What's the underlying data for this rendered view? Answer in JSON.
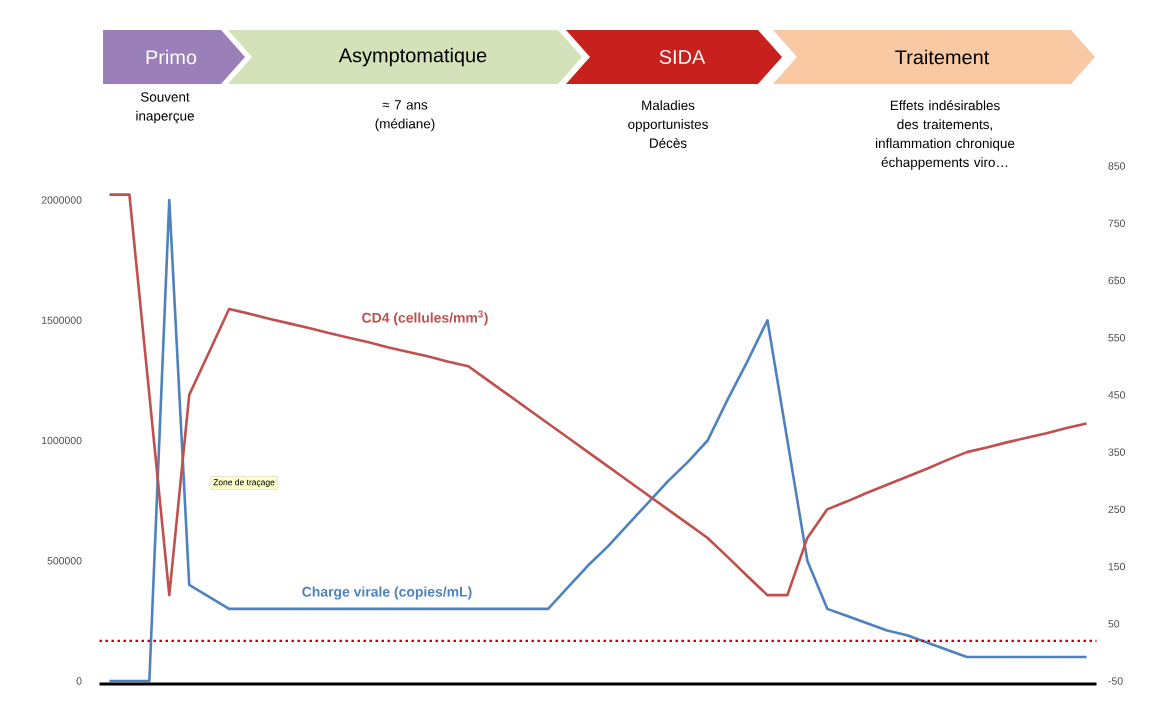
{
  "chart_data": {
    "type": "line",
    "annotations": [
      "Primo",
      "Souvent inaperçue",
      "Asymptomatique",
      "≈ 7 ans (médiane)",
      "SIDA",
      "Maladies opportunistes Décès",
      "Traitement",
      "Effets indésirables des traitements, inflammation chronique échappements viro…",
      "Zone de traçage"
    ],
    "categories": [
      null,
      null,
      null,
      null,
      null,
      null,
      null,
      null,
      null,
      null,
      null,
      null,
      null,
      null,
      null,
      null,
      null,
      null,
      null,
      null,
      null,
      null,
      null,
      null,
      null,
      null,
      null,
      null,
      null,
      null,
      null,
      null,
      null,
      null,
      null,
      null,
      null,
      null,
      null,
      null,
      null,
      null,
      null,
      null,
      null,
      null,
      null,
      null,
      null,
      null
    ],
    "ylim": [
      0,
      2000000
    ],
    "yticks": [
      0,
      500000,
      1000000,
      1500000,
      2000000
    ],
    "y2lim": [
      -50,
      850
    ],
    "y2ticks": [
      -50,
      50,
      150,
      250,
      350,
      450,
      550,
      650,
      750,
      850
    ],
    "tick_labels": "y",
    "series": [
      {
        "name": "CD4 (cellules/mm$^{3}$)",
        "color": "#c0504d",
        "axis": "y2",
        "values": [
          800,
          800,
          450,
          100,
          450,
          525,
          600,
          592,
          583,
          575,
          567,
          558,
          550,
          542,
          533,
          525,
          517,
          508,
          500,
          475,
          450,
          425,
          400,
          375,
          350,
          325,
          300,
          275,
          250,
          225,
          200,
          167,
          133,
          100,
          100,
          200,
          250,
          264,
          279,
          293,
          307,
          321,
          336,
          350,
          358,
          367,
          375,
          383,
          392,
          400
        ]
      },
      {
        "name": "Charge virale (copies/mL)",
        "color": "#4f81bd",
        "values": [
          0,
          0,
          0,
          2000000,
          400000,
          350000,
          300000,
          300000,
          300000,
          300000,
          300000,
          300000,
          300000,
          300000,
          300000,
          300000,
          300000,
          300000,
          300000,
          300000,
          300000,
          300000,
          300000,
          390000,
          480000,
          560000,
          650000,
          740000,
          830000,
          910000,
          1000000,
          1170000,
          1330000,
          1500000,
          1000000,
          500000,
          300000,
          270000,
          240000,
          210000,
          190000,
          160000,
          130000,
          100000,
          100000,
          100000,
          100000,
          100000,
          100000,
          100000
        ]
      }
    ],
    "ref_lines": [
      {
        "axis": "y2",
        "value": 20,
        "color": "#cc0000",
        "line_style": "dotted"
      }
    ]
  }
}
